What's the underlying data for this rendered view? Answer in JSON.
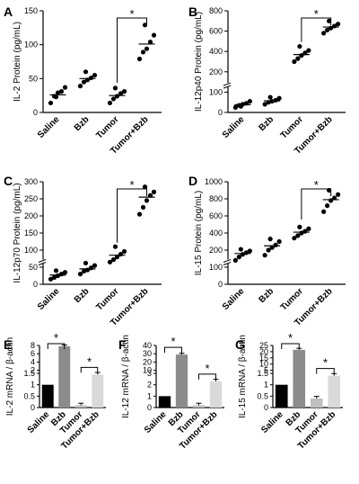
{
  "chart_data": [
    {
      "panel": "A",
      "type": "scatter",
      "ylabel": "IL-2 Protein (pg/mL)",
      "categories": [
        "Saline",
        "Bzb",
        "Tumor",
        "Tumor+Bzb"
      ],
      "yticks": [
        0,
        50,
        100,
        150
      ],
      "ylim": [
        0,
        150
      ],
      "points": [
        [
          14,
          24,
          29,
          31,
          37,
          23
        ],
        [
          39,
          45,
          48,
          51,
          55,
          60
        ],
        [
          14,
          20,
          24,
          28,
          31,
          36
        ],
        [
          79,
          89,
          94,
          104,
          114,
          129
        ]
      ],
      "means": [
        26,
        50,
        25,
        101
      ],
      "significance": {
        "from": 2,
        "to": 3,
        "label": "*"
      }
    },
    {
      "panel": "B",
      "type": "scatter",
      "ylabel": "IL-12p40 Protein (pg/mL)",
      "categories": [
        "Saline",
        "Bzb",
        "Tumor",
        "Tumor+Bzb"
      ],
      "yticks": [
        0,
        100,
        200,
        400,
        600,
        800
      ],
      "yticks_visible": [
        "0",
        "100",
        "200",
        "400",
        "600",
        "800"
      ],
      "ylim": [
        0,
        800
      ],
      "broken_axis": true,
      "points": [
        [
          25,
          35,
          40,
          45,
          55,
          30
        ],
        [
          40,
          50,
          55,
          60,
          70,
          75
        ],
        [
          300,
          330,
          360,
          385,
          410,
          450
        ],
        [
          580,
          610,
          630,
          650,
          670,
          700
        ]
      ],
      "means": [
        38,
        57,
        370,
        640
      ],
      "significance": {
        "from": 2,
        "to": 3,
        "label": "*"
      }
    },
    {
      "panel": "C",
      "type": "scatter",
      "ylabel": "IL-12p70 Protein (pg/mL)",
      "categories": [
        "Saline",
        "Bzb",
        "Tumor",
        "Tumor+Bzb"
      ],
      "yticks": [
        0,
        50,
        100,
        150,
        200,
        250,
        300
      ],
      "ylim": [
        0,
        300
      ],
      "broken_axis": true,
      "points": [
        [
          15,
          20,
          25,
          30,
          35,
          40
        ],
        [
          30,
          38,
          42,
          48,
          55,
          62
        ],
        [
          65,
          72,
          80,
          88,
          96,
          110
        ],
        [
          205,
          225,
          245,
          260,
          270,
          285
        ]
      ],
      "means": [
        27,
        45,
        85,
        255
      ],
      "significance": {
        "from": 2,
        "to": 3,
        "label": "*"
      }
    },
    {
      "panel": "D",
      "type": "scatter",
      "ylabel": "IL-15 Protein (pg/mL)",
      "categories": [
        "Saline",
        "Bzb",
        "Tumor",
        "Tumor+Bzb"
      ],
      "yticks": [
        0,
        100,
        200,
        400,
        600,
        800,
        1000
      ],
      "ylim": [
        0,
        1000
      ],
      "broken_axis": true,
      "points": [
        [
          140,
          160,
          175,
          185,
          195,
          210
        ],
        [
          170,
          200,
          230,
          260,
          300,
          330
        ],
        [
          340,
          370,
          400,
          420,
          450,
          470
        ],
        [
          650,
          720,
          780,
          810,
          850,
          900
        ]
      ],
      "means": [
        180,
        250,
        410,
        790
      ],
      "significance": {
        "from": 2,
        "to": 3,
        "label": "*"
      }
    },
    {
      "panel": "E",
      "type": "bar",
      "ylabel": "IL-2 mRNA / β-actin",
      "categories": [
        "Saline",
        "Bzb",
        "Tumor",
        "Tumor+Bzb"
      ],
      "yticks_lower": [
        "0",
        "0.5",
        "1",
        "1.5"
      ],
      "yticks_upper": [
        "2",
        "4",
        "6",
        "8"
      ],
      "values": [
        1.0,
        7.8,
        0.1,
        1.45
      ],
      "errors": [
        0,
        0.1,
        0.05,
        0.05
      ],
      "colors": [
        "#000000",
        "#8c8c8c",
        "#c0c0c0",
        "#d9d9d9"
      ],
      "significance": [
        {
          "from": 0,
          "to": 1,
          "label": "*"
        },
        {
          "from": 2,
          "to": 3,
          "label": "*"
        }
      ]
    },
    {
      "panel": "F",
      "type": "bar",
      "ylabel": "IL-12 mRNA / β-actin",
      "categories": [
        "Saline",
        "Bzb",
        "Tumor",
        "Tumor+Bzb"
      ],
      "yticks_lower": [
        "0",
        "1",
        "2",
        "3"
      ],
      "yticks_upper": [
        "10",
        "20",
        "30",
        "40"
      ],
      "values": [
        1.0,
        29.0,
        0.2,
        2.3
      ],
      "errors": [
        0,
        0.5,
        0.1,
        0.1
      ],
      "colors": [
        "#000000",
        "#8c8c8c",
        "#c0c0c0",
        "#d9d9d9"
      ],
      "significance": [
        {
          "from": 0,
          "to": 1,
          "label": "*"
        },
        {
          "from": 2,
          "to": 3,
          "label": "*"
        }
      ]
    },
    {
      "panel": "G",
      "type": "bar",
      "ylabel": "IL-15 mRNA / β-actin",
      "categories": [
        "Saline",
        "Bzb",
        "Tumor",
        "Tumor+Bzb"
      ],
      "yticks_lower": [
        "0",
        "0.5",
        "1",
        "1.5"
      ],
      "yticks_upper": [
        "5",
        "10",
        "15",
        "20",
        "25"
      ],
      "values": [
        1.0,
        21.5,
        0.4,
        1.4
      ],
      "errors": [
        0,
        0.5,
        0.05,
        0.05
      ],
      "colors": [
        "#000000",
        "#8c8c8c",
        "#c0c0c0",
        "#d9d9d9"
      ],
      "significance": [
        {
          "from": 0,
          "to": 1,
          "label": "*"
        },
        {
          "from": 2,
          "to": 3,
          "label": "*"
        }
      ]
    }
  ]
}
